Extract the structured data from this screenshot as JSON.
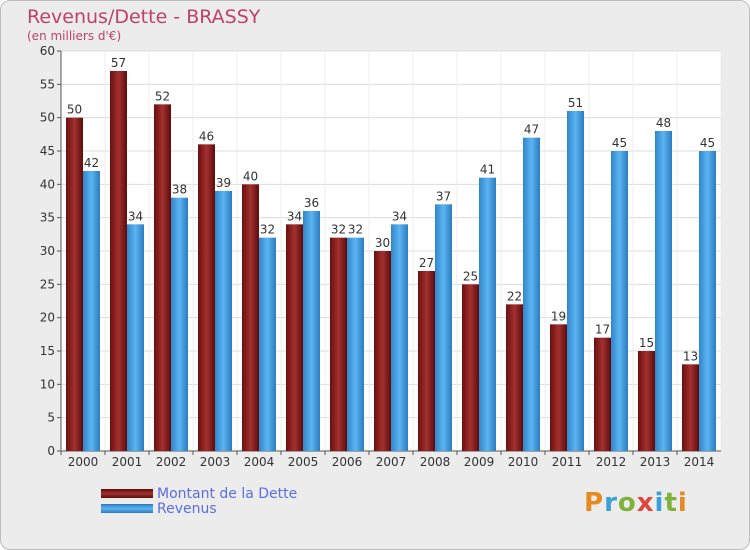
{
  "chart_data": {
    "type": "bar",
    "title": "Revenus/Dette - BRASSY",
    "subtitle": "(en milliers d'€)",
    "categories": [
      "2000",
      "2001",
      "2002",
      "2003",
      "2004",
      "2005",
      "2006",
      "2007",
      "2008",
      "2009",
      "2010",
      "2011",
      "2012",
      "2013",
      "2014"
    ],
    "series": [
      {
        "name": "Montant de la Dette",
        "color": "#8b1a1a",
        "values": [
          50,
          57,
          52,
          46,
          40,
          34,
          32,
          30,
          27,
          25,
          22,
          19,
          17,
          15,
          13
        ]
      },
      {
        "name": "Revenus",
        "color": "#3f9ee0",
        "values": [
          42,
          34,
          38,
          39,
          32,
          36,
          32,
          34,
          37,
          41,
          47,
          51,
          45,
          48,
          45
        ]
      }
    ],
    "ylim": [
      0,
      60
    ],
    "yticks": [
      0,
      5,
      10,
      15,
      20,
      25,
      30,
      35,
      40,
      45,
      50,
      55,
      60
    ],
    "grid": true,
    "legend_position": "bottom-left"
  },
  "logo": {
    "text": "Proxiti"
  }
}
